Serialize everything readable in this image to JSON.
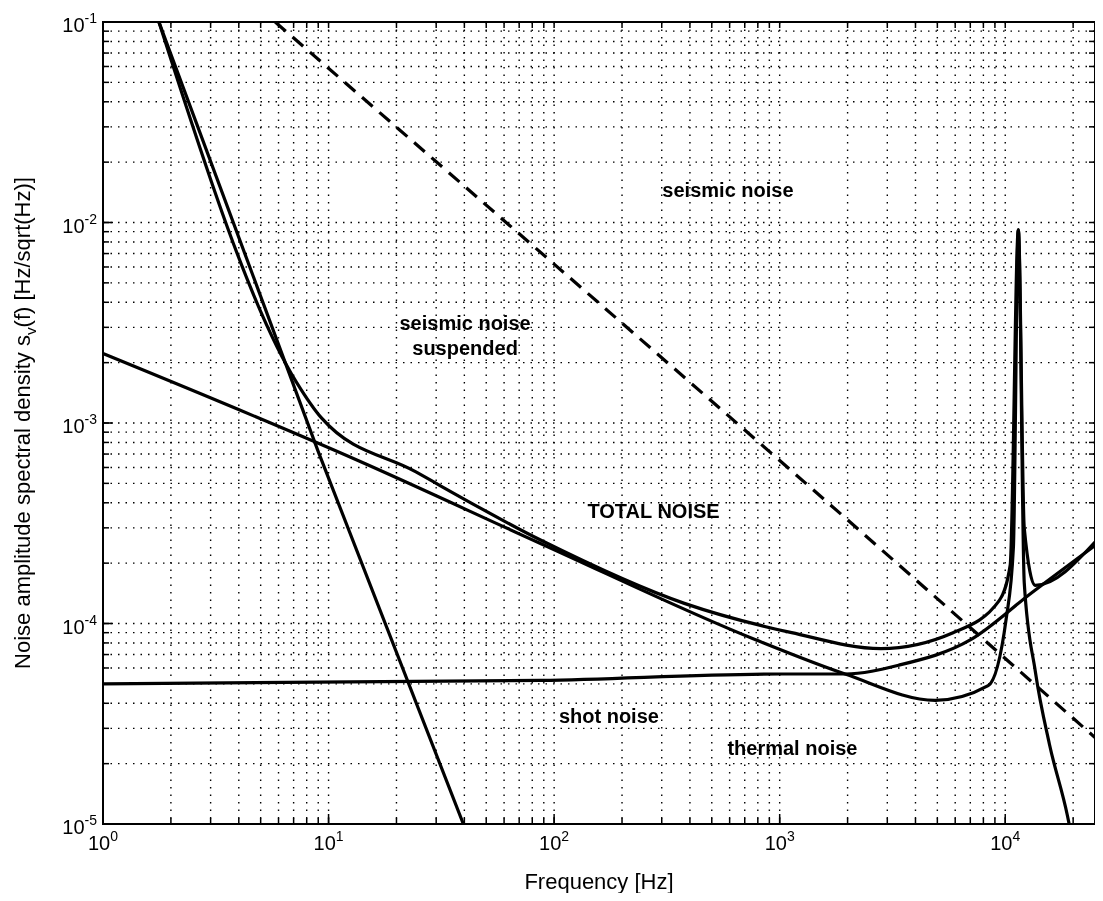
{
  "chart_data": {
    "type": "line",
    "xlabel": "Frequency [Hz]",
    "ylabel": "Noise amplitude spectral density s$_{v}$(f) [Hz/sqrt(Hz)]",
    "log": "xy",
    "grid": true,
    "marker": "none",
    "line_style": "solid",
    "xlim": [
      1,
      25000
    ],
    "ylim": [
      1e-05,
      0.1
    ],
    "xticks": [
      {
        "value": 1,
        "label": "10$^{0}$"
      },
      {
        "value": 10,
        "label": "10$^{1}$"
      },
      {
        "value": 100,
        "label": "10$^{2}$"
      },
      {
        "value": 1000,
        "label": "10$^{3}$"
      },
      {
        "value": 10000,
        "label": "10$^{4}$"
      }
    ],
    "yticks": [
      {
        "value": 1e-05,
        "label": "10$^{-5}$"
      },
      {
        "value": 0.0001,
        "label": "10$^{-4}$"
      },
      {
        "value": 0.001,
        "label": "10$^{-3}$"
      },
      {
        "value": 0.01,
        "label": "10$^{-2}$"
      },
      {
        "value": 0.1,
        "label": "10$^{-1}$"
      }
    ],
    "series": [
      {
        "color": "#000000",
        "line_style": "dashed",
        "x": [
          5.8,
          100,
          1000,
          25000
        ],
        "values": [
          0.1,
          0.0062,
          0.00065,
          2.7e-05
        ]
      },
      {
        "color": "#000000",
        "x": [
          1.77,
          9,
          39.6
        ],
        "values": [
          0.1,
          0.00072,
          1e-05
        ]
      },
      {
        "color": "#000000",
        "x": [
          1,
          13.5,
          87.5,
          782,
          1950,
          4890,
          8400,
          10100,
          10870,
          11430,
          12140,
          13600,
          15700,
          18870,
          19200
        ],
        "values": [
          0.00222,
          0.00065,
          0.00025,
          8.3e-05,
          5.6e-05,
          4.14e-05,
          4.9e-05,
          0.000106,
          0.00024,
          0.0092,
          0.00016,
          5.75e-05,
          2.5e-05,
          1.1e-05,
          1e-05
        ]
      },
      {
        "color": "#000000",
        "x": [
          1,
          87.5,
          1000,
          1950,
          3380,
          7030,
          13060,
          25000
        ],
        "values": [
          5e-05,
          5.2e-05,
          5.6e-05,
          5.6e-05,
          6.2e-05,
          8.3e-05,
          0.000142,
          0.000245
        ]
      },
      {
        "color": "#000000",
        "x": [
          1.77,
          7.2,
          9.3,
          24.4,
          87.5,
          378,
          1130,
          2810,
          5870,
          9400,
          10520,
          11430,
          12140,
          13600,
          25000
        ],
        "values": [
          0.1,
          0.0016,
          0.00106,
          0.00057,
          0.00026,
          0.000126,
          9e-05,
          7.5e-05,
          9e-05,
          0.00013,
          0.000196,
          0.0092,
          0.0003,
          0.000155,
          0.000255
        ]
      }
    ],
    "annotations": [
      "seismic noise",
      "seismic noise\nsuspended",
      "TOTAL NOISE",
      "shot noise",
      "thermal noise"
    ]
  }
}
